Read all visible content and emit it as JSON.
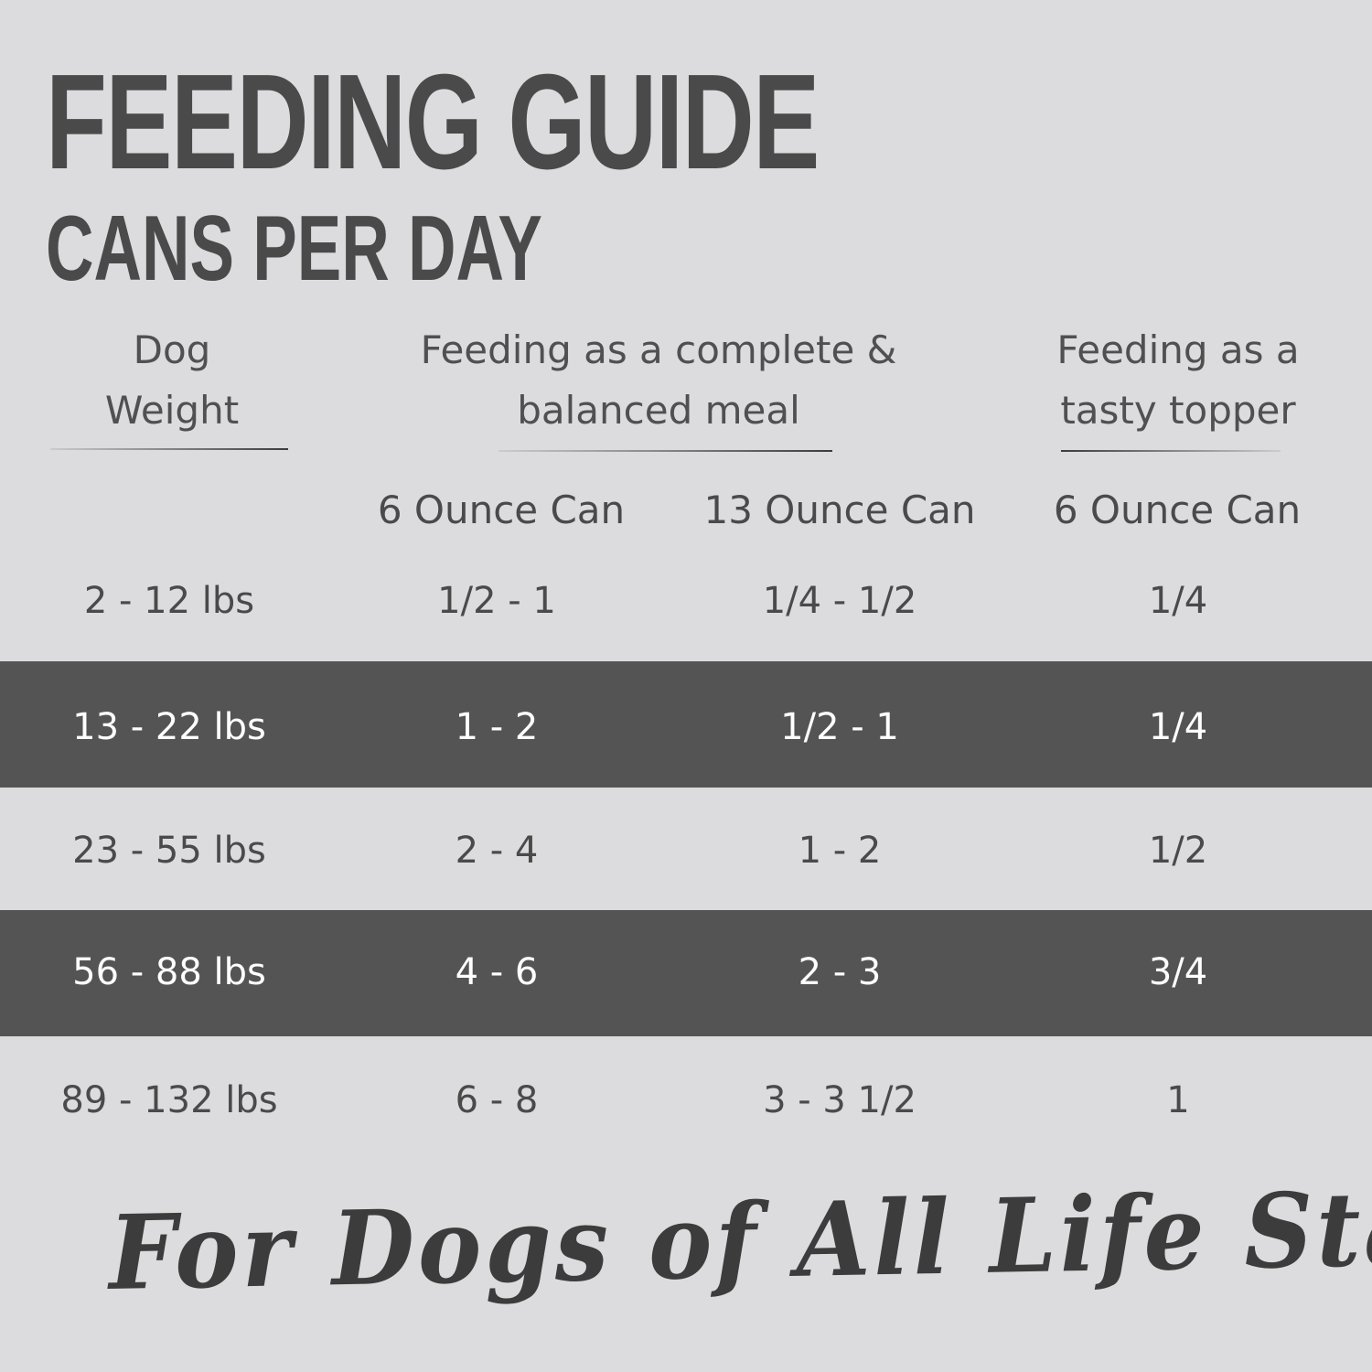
{
  "title": "FEEDING GUIDE",
  "subtitle": "CANS PER DAY",
  "headers": {
    "weight": [
      "Dog",
      "Weight"
    ],
    "complete": [
      "Feeding as a complete &",
      "balanced meal"
    ],
    "topper": [
      "Feeding as a",
      "tasty topper"
    ]
  },
  "subheaders": [
    "6 Ounce Can",
    "13 Ounce Can",
    "6 Ounce Can"
  ],
  "rows": [
    [
      "2 - 12 lbs",
      "1/2 - 1",
      "1/4 - 1/2",
      "1/4"
    ],
    [
      "13 - 22 lbs",
      "1 - 2",
      "1/2 - 1",
      "1/4"
    ],
    [
      "23 - 55 lbs",
      "2 - 4",
      "1 - 2",
      "1/2"
    ],
    [
      "56 - 88 lbs",
      "4 - 6",
      "2 - 3",
      "3/4"
    ],
    [
      "89 - 132 lbs",
      "6 - 8",
      "3 - 3 1/2",
      "1"
    ]
  ],
  "footer": "For Dogs of All Life Stages",
  "colors": {
    "background": "#dcdcde",
    "band": "#545454",
    "text": "#4a4a4a"
  }
}
